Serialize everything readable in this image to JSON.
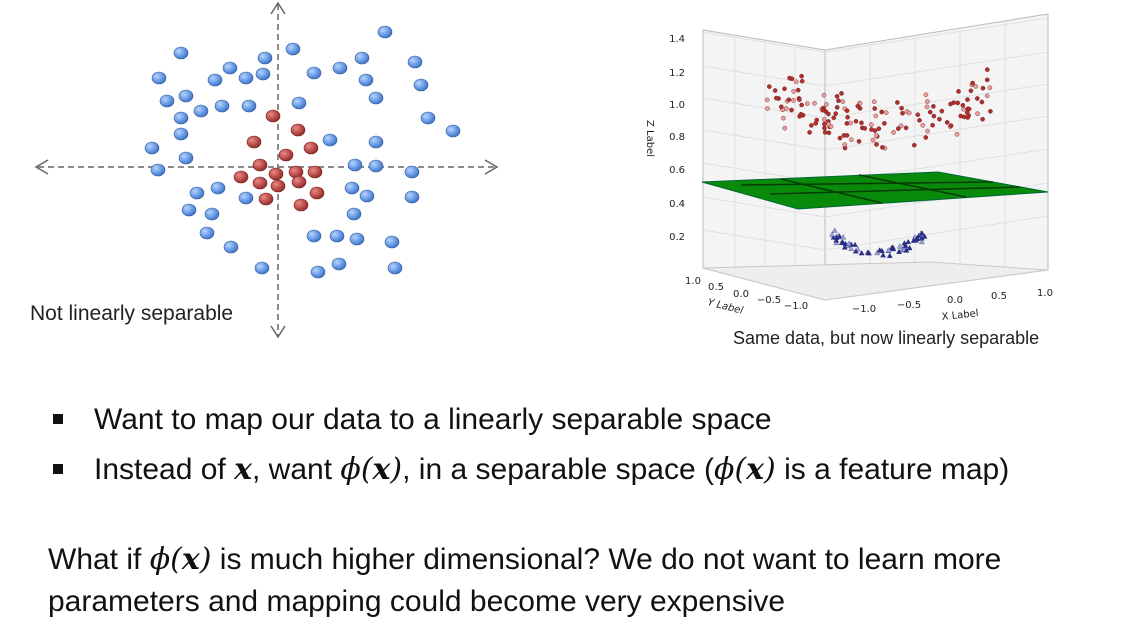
{
  "left_figure": {
    "caption": "Not linearly separable",
    "colors": {
      "outer": "#6b9ee8",
      "inner": "#c0504d",
      "axis": "#666666"
    }
  },
  "right_figure": {
    "caption": "Same data, but now linearly separable",
    "zlabel": "Z Label",
    "xlabel": "X Label",
    "ylabel": "Y Label",
    "z_ticks": [
      "1.4",
      "1.2",
      "1.0",
      "0.8",
      "0.6",
      "0.4",
      "0.2"
    ],
    "x_ticks": [
      "−1.0",
      "−0.5",
      "0.0",
      "0.5",
      "1.0"
    ],
    "y_ticks": [
      "1.0",
      "0.5",
      "0.0",
      "−0.5",
      "−1.0"
    ],
    "colors": {
      "upper": "#b03030",
      "lower": "#2a2f8f",
      "plane": "#0a8a0a"
    }
  },
  "bullets": [
    {
      "parts": [
        {
          "t": "Want to map our data to a linearly separable space",
          "s": "text"
        }
      ]
    },
    {
      "parts": [
        {
          "t": "Instead of ",
          "s": "text"
        },
        {
          "t": "x",
          "s": "mathb"
        },
        {
          "t": ", want ",
          "s": "text"
        },
        {
          "t": "ϕ(",
          "s": "math"
        },
        {
          "t": "x",
          "s": "mathb"
        },
        {
          "t": ")",
          "s": "math"
        },
        {
          "t": ", in a separable space (",
          "s": "text"
        },
        {
          "t": "ϕ(",
          "s": "math"
        },
        {
          "t": "x",
          "s": "mathb"
        },
        {
          "t": ")",
          "s": "math"
        },
        {
          "t": " is a feature map)",
          "s": "text"
        }
      ]
    }
  ],
  "question": {
    "parts": [
      {
        "t": "What if ",
        "s": "text"
      },
      {
        "t": "ϕ(",
        "s": "math"
      },
      {
        "t": "x",
        "s": "mathb"
      },
      {
        "t": ")",
        "s": "math"
      },
      {
        "t": " is much higher dimensional? We do not want to learn more parameters and mapping could become very expensive",
        "s": "text"
      }
    ]
  }
}
